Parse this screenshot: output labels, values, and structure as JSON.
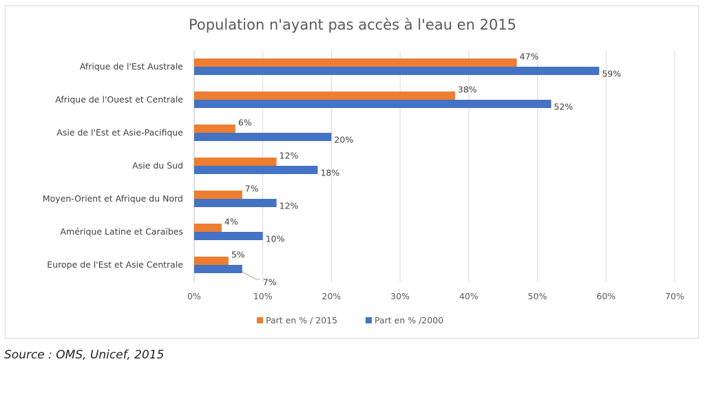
{
  "chart_data": {
    "type": "bar",
    "orientation": "horizontal",
    "title": "Population n'ayant pas accès à l'eau en 2015",
    "categories": [
      "Afrique de l'Est Australe",
      "Afrique de l'Ouest et Centrale",
      "Asie de l'Est et Asie-Pacifique",
      "Asie du Sud",
      "Moyen-Orient et Afrique du Nord",
      "Amérique Latine et Caraïbes",
      "Europe de l'Est et Asie Centrale"
    ],
    "series": [
      {
        "name": "Part en % / 2015",
        "color": "#ed7d31",
        "values": [
          47,
          38,
          6,
          12,
          7,
          4,
          5
        ]
      },
      {
        "name": "Part en % /2000",
        "color": "#4472c4",
        "values": [
          59,
          52,
          20,
          18,
          12,
          10,
          7
        ]
      }
    ],
    "xlim": [
      0,
      70
    ],
    "xticks": [
      "0%",
      "10%",
      "20%",
      "30%",
      "40%",
      "50%",
      "60%",
      "70%"
    ],
    "grid": true,
    "legend": "bottom",
    "xlabel": "",
    "ylabel": ""
  },
  "source": "Source : OMS, Unicef, 2015"
}
